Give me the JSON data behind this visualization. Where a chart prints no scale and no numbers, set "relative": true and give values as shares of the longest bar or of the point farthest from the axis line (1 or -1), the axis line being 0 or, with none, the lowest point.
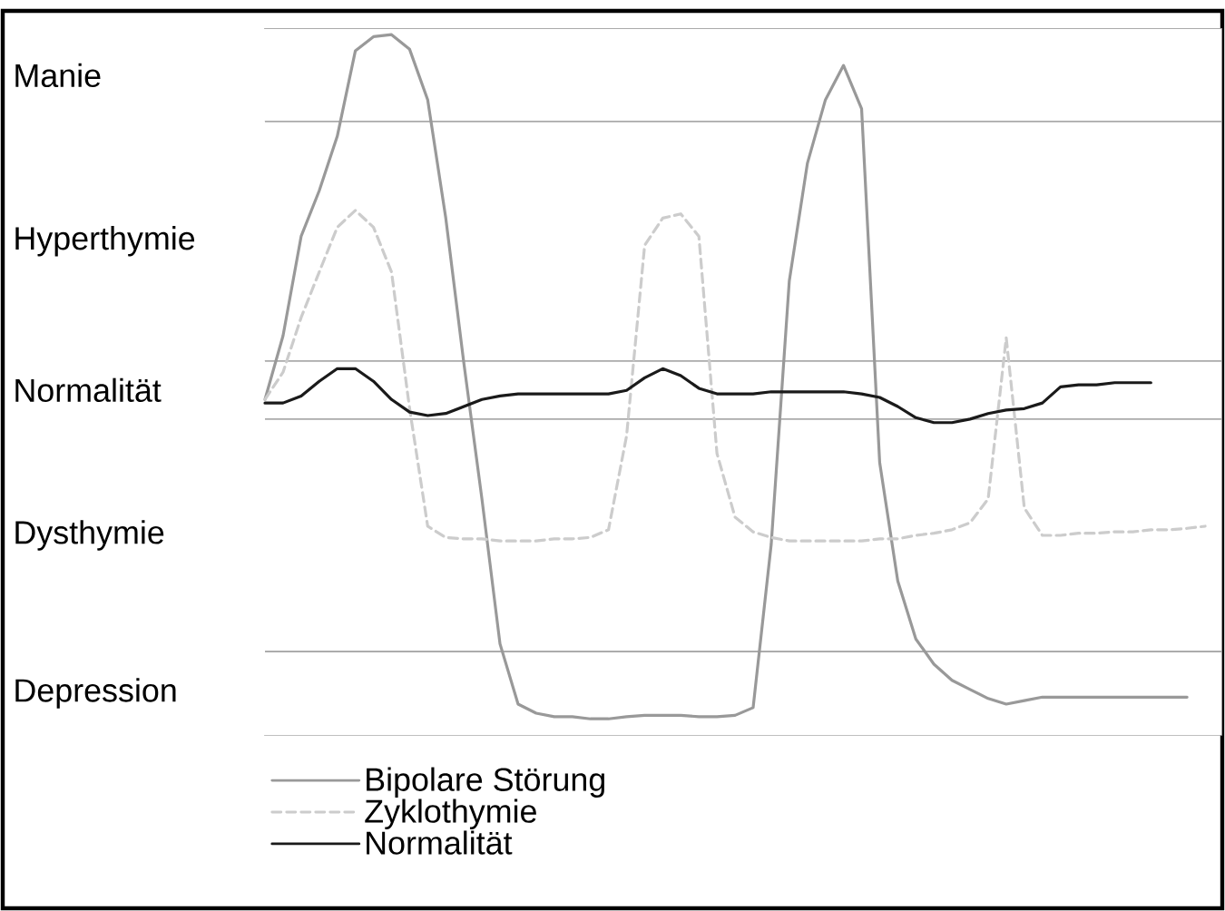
{
  "chart_data": {
    "type": "line",
    "relative": true,
    "legend": "bottom",
    "marker": "none",
    "categories": [
      null,
      null,
      null,
      null,
      null,
      null,
      null,
      null,
      null,
      null,
      null,
      null,
      null,
      null,
      null,
      null,
      null,
      null,
      null,
      null,
      null,
      null,
      null,
      null,
      null,
      null,
      null,
      null,
      null,
      null,
      null,
      null,
      null,
      null,
      null,
      null,
      null,
      null,
      null,
      null,
      null,
      null,
      null,
      null,
      null,
      null,
      null,
      null,
      null,
      null,
      null,
      null,
      null
    ],
    "series": [
      {
        "name": "Bipolare Störung",
        "color": "#999999",
        "line_style": "solid",
        "values": [
          0.479,
          0.57,
          0.712,
          0.777,
          0.855,
          0.977,
          0.997,
          1,
          0.979,
          0.907,
          0.738,
          0.531,
          0.337,
          0.13,
          0.044,
          0.031,
          0.026,
          0.026,
          0.023,
          0.023,
          0.026,
          0.028,
          0.028,
          0.028,
          0.026,
          0.026,
          0.028,
          0.039,
          0.272,
          0.648,
          0.816,
          0.907,
          0.956,
          0.894,
          0.389,
          0.22,
          0.137,
          0.101,
          0.078,
          0.065,
          0.052,
          0.044,
          0.049,
          0.054,
          0.054,
          0.054,
          0.054,
          0.054,
          0.054,
          0.054,
          0.054,
          0.054,
          null
        ]
      },
      {
        "name": "Zyklothymie",
        "color": "#cccccc",
        "line_style": "dashed",
        "values": [
          0.479,
          0.518,
          0.596,
          0.661,
          0.725,
          0.749,
          0.725,
          0.661,
          0.466,
          0.298,
          0.282,
          0.28,
          0.28,
          0.277,
          0.277,
          0.277,
          0.28,
          0.28,
          0.282,
          0.293,
          0.427,
          0.699,
          0.738,
          0.744,
          0.712,
          0.402,
          0.311,
          0.29,
          0.282,
          0.277,
          0.277,
          0.277,
          0.277,
          0.277,
          0.28,
          0.28,
          0.285,
          0.288,
          0.293,
          0.303,
          0.337,
          0.567,
          0.324,
          0.285,
          0.285,
          0.288,
          0.288,
          0.29,
          0.29,
          0.293,
          0.293,
          0.295,
          0.298
        ]
      },
      {
        "name": "Normalität",
        "color": "#1a1a1a",
        "line_style": "solid",
        "values": [
          0.474,
          0.474,
          0.484,
          0.505,
          0.523,
          0.523,
          0.505,
          0.479,
          0.461,
          0.456,
          0.459,
          0.469,
          0.479,
          0.484,
          0.487,
          0.487,
          0.487,
          0.487,
          0.487,
          0.487,
          0.492,
          0.51,
          0.523,
          0.513,
          0.495,
          0.487,
          0.487,
          0.487,
          0.49,
          0.49,
          0.49,
          0.49,
          0.49,
          0.487,
          0.482,
          0.469,
          0.453,
          0.446,
          0.446,
          0.451,
          0.459,
          0.464,
          0.466,
          0.474,
          0.497,
          0.5,
          0.5,
          0.503,
          0.503,
          0.503,
          null,
          null,
          null
        ]
      }
    ],
    "bands": [
      {
        "axis": "y",
        "from": 0.876,
        "to": 1.008,
        "label": "Manie",
        "color": "#ffffff"
      },
      {
        "axis": "y",
        "from": 0.534,
        "to": 0.876,
        "label": "Hyperthymie",
        "color": "#ffffff"
      },
      {
        "axis": "y",
        "from": 0.451,
        "to": 0.534,
        "label": "Normalität",
        "color": "#ffffff"
      },
      {
        "axis": "y",
        "from": 0.119,
        "to": 0.451,
        "label": "Dysthymie",
        "color": "#ffffff"
      },
      {
        "axis": "y",
        "from": 0,
        "to": 0.119,
        "label": "Depression",
        "color": "#ffffff"
      }
    ]
  }
}
